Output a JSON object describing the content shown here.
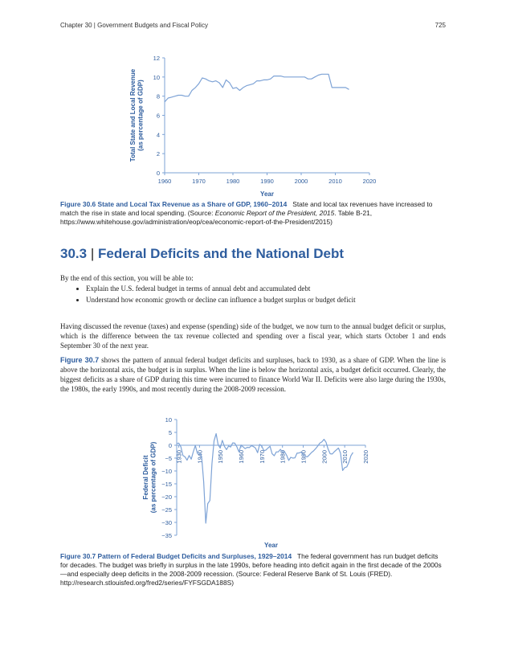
{
  "header": {
    "chapter": "Chapter 30 | Government Budgets and Fiscal Policy",
    "page": "725"
  },
  "figure1": {
    "caption_label": "Figure 30.6 State and Local Tax Revenue as a Share of GDP, 1960–2014",
    "caption_text1": "State and local tax revenues have increased to match the rise in state and local spending. (Source: ",
    "caption_italic": "Economic Report of the President, 2015",
    "caption_text2": ". Table B-21, https://www.whitehouse.gov/administration/eop/cea/economic-report-of-the-President/2015)",
    "chart_data": {
      "type": "line",
      "xlabel": "Year",
      "ylabel": "Total State and Local Revenue (as percentage of GDP)",
      "ylabel_lines": [
        "Total State and Local Revenue",
        "(as percentage of GDP)"
      ],
      "xlim": [
        1960,
        2020
      ],
      "ylim": [
        0,
        12
      ],
      "x_ticks": [
        1960,
        1970,
        1980,
        1990,
        2000,
        2010,
        2020
      ],
      "y_ticks": [
        0,
        2,
        4,
        6,
        8,
        10,
        12
      ],
      "x_tick_labels": [
        "1960",
        "1970",
        "1980",
        "1990",
        "2000",
        "2010",
        "2020"
      ],
      "y_tick_labels": [
        "0",
        "2",
        "4",
        "6",
        "8",
        "10",
        "12"
      ],
      "color": "#7ea3d6",
      "series": [
        {
          "x": [
            1960,
            1961,
            1962,
            1963,
            1964,
            1965,
            1966,
            1967,
            1968,
            1969,
            1970,
            1971,
            1972,
            1973,
            1974,
            1975,
            1976,
            1977,
            1978,
            1979,
            1980,
            1981,
            1982,
            1983,
            1984,
            1985,
            1986,
            1987,
            1988,
            1989,
            1990,
            1991,
            1992,
            1993,
            1994,
            1995,
            1996,
            1997,
            1998,
            1999,
            2000,
            2001,
            2002,
            2003,
            2004,
            2005,
            2006,
            2007,
            2008,
            2009,
            2010,
            2011,
            2012,
            2013,
            2014
          ],
          "y": [
            7.4,
            7.8,
            7.9,
            8.0,
            8.1,
            8.1,
            8.0,
            8.0,
            8.6,
            8.9,
            9.3,
            9.9,
            9.8,
            9.6,
            9.5,
            9.6,
            9.4,
            8.9,
            9.7,
            9.4,
            8.8,
            8.9,
            8.6,
            8.9,
            9.1,
            9.2,
            9.3,
            9.6,
            9.6,
            9.7,
            9.7,
            9.8,
            10.1,
            10.1,
            10.1,
            10.0,
            10.0,
            10.0,
            10.0,
            10.0,
            10.0,
            10.0,
            9.8,
            9.8,
            10.0,
            10.2,
            10.3,
            10.3,
            10.3,
            8.9,
            8.9,
            8.9,
            8.9,
            8.9,
            8.7
          ]
        }
      ]
    }
  },
  "section": {
    "number": "30.3",
    "separator": "|",
    "title": "Federal Deficits and the National Debt",
    "intro": "By the end of this section, you will be able to:",
    "objectives": [
      "Explain the U.S. federal budget in terms of annual debt and accumulated debt",
      "Understand how economic growth or decline can influence a budget surplus or budget deficit"
    ],
    "paragraph1": "Having discussed the revenue (taxes) and expense (spending) side of the budget, we now turn to the annual budget deficit or surplus, which is the difference between the tax revenue collected and spending over a fiscal year, which starts October 1 and ends September 30 of the next year.",
    "paragraph2_link": "Figure 30.7",
    "paragraph2": " shows the pattern of annual federal budget deficits and surpluses, back to 1930, as a share of GDP. When the line is above the horizontal axis, the budget is in surplus. When the line is below the horizontal axis, a budget deficit occurred. Clearly, the biggest deficits as a share of GDP during this time were incurred to finance World War II. Deficits were also large during the 1930s, the 1980s, the early 1990s, and most recently during the 2008-2009 recession."
  },
  "figure2": {
    "caption_label": "Figure 30.7 Pattern of Federal Budget Deficits and Surpluses, 1929–2014",
    "caption_text": "The federal government has run budget deficits for decades. The budget was briefly in surplus in the late 1990s, before heading into deficit again in the first decade of the 2000s—and especially deep deficits in the 2008-2009 recession. (Source: Federal Reserve Bank of St. Louis (FRED). http://research.stlouisfed.org/fred2/series/FYFSGDA188S)",
    "chart_data": {
      "type": "line",
      "xlabel": "Year",
      "ylabel": "Federal Deficit (as percentage of GDP)",
      "ylabel_lines": [
        "Federal Deficit",
        "(as percentage of GDP)"
      ],
      "xlim": [
        1929,
        2020
      ],
      "ylim": [
        -35,
        10
      ],
      "x_ticks": [
        1930,
        1940,
        1950,
        1960,
        1970,
        1980,
        1990,
        2000,
        2010,
        2020
      ],
      "y_ticks": [
        10,
        5,
        0,
        -5,
        -10,
        -15,
        -20,
        -25,
        -30,
        -35
      ],
      "x_tick_labels": [
        "1930",
        "1940",
        "1950",
        "1960",
        "1970",
        "1980",
        "1990",
        "2000",
        "2010",
        "2020"
      ],
      "y_tick_labels": [
        "10",
        "5",
        "0",
        "−5",
        "−10",
        "−15",
        "−20",
        "−25",
        "−30",
        "−35"
      ],
      "color": "#7ea3d6",
      "series": [
        {
          "x": [
            1929,
            1930,
            1931,
            1932,
            1933,
            1934,
            1935,
            1936,
            1937,
            1938,
            1939,
            1940,
            1941,
            1942,
            1943,
            1944,
            1945,
            1946,
            1947,
            1948,
            1949,
            1950,
            1951,
            1952,
            1953,
            1954,
            1955,
            1956,
            1957,
            1958,
            1959,
            1960,
            1961,
            1962,
            1963,
            1964,
            1965,
            1966,
            1967,
            1968,
            1969,
            1970,
            1971,
            1972,
            1973,
            1974,
            1975,
            1976,
            1977,
            1978,
            1979,
            1980,
            1981,
            1982,
            1983,
            1984,
            1985,
            1986,
            1987,
            1988,
            1989,
            1990,
            1991,
            1992,
            1993,
            1994,
            1995,
            1996,
            1997,
            1998,
            1999,
            2000,
            2001,
            2002,
            2003,
            2004,
            2005,
            2006,
            2007,
            2008,
            2009,
            2010,
            2011,
            2012,
            2013,
            2014
          ],
          "y": [
            0.7,
            0.8,
            -0.6,
            -4.0,
            -4.5,
            -5.8,
            -4.0,
            -5.4,
            -2.5,
            -0.1,
            -3.2,
            -3.0,
            -4.3,
            -14.2,
            -30.3,
            -22.7,
            -21.5,
            -7.2,
            1.7,
            4.5,
            0.2,
            -1.1,
            1.9,
            -0.4,
            -1.7,
            -0.3,
            -0.7,
            0.9,
            0.8,
            -0.6,
            -2.6,
            0.1,
            -0.6,
            -1.3,
            -0.8,
            -0.9,
            -0.2,
            -0.5,
            -1.1,
            -2.9,
            0.3,
            -0.3,
            -2.1,
            -1.9,
            -1.1,
            -0.4,
            -3.3,
            -4.1,
            -2.6,
            -2.6,
            -1.6,
            -2.6,
            -2.5,
            -3.9,
            -5.9,
            -4.7,
            -5.0,
            -4.9,
            -3.1,
            -3.0,
            -2.7,
            -3.7,
            -4.4,
            -4.5,
            -3.7,
            -2.8,
            -2.2,
            -1.3,
            -0.3,
            0.8,
            1.3,
            2.3,
            1.2,
            -1.5,
            -3.3,
            -3.4,
            -2.5,
            -1.8,
            -1.1,
            -3.1,
            -9.8,
            -8.7,
            -8.4,
            -6.7,
            -4.1,
            -2.8
          ]
        }
      ]
    }
  }
}
